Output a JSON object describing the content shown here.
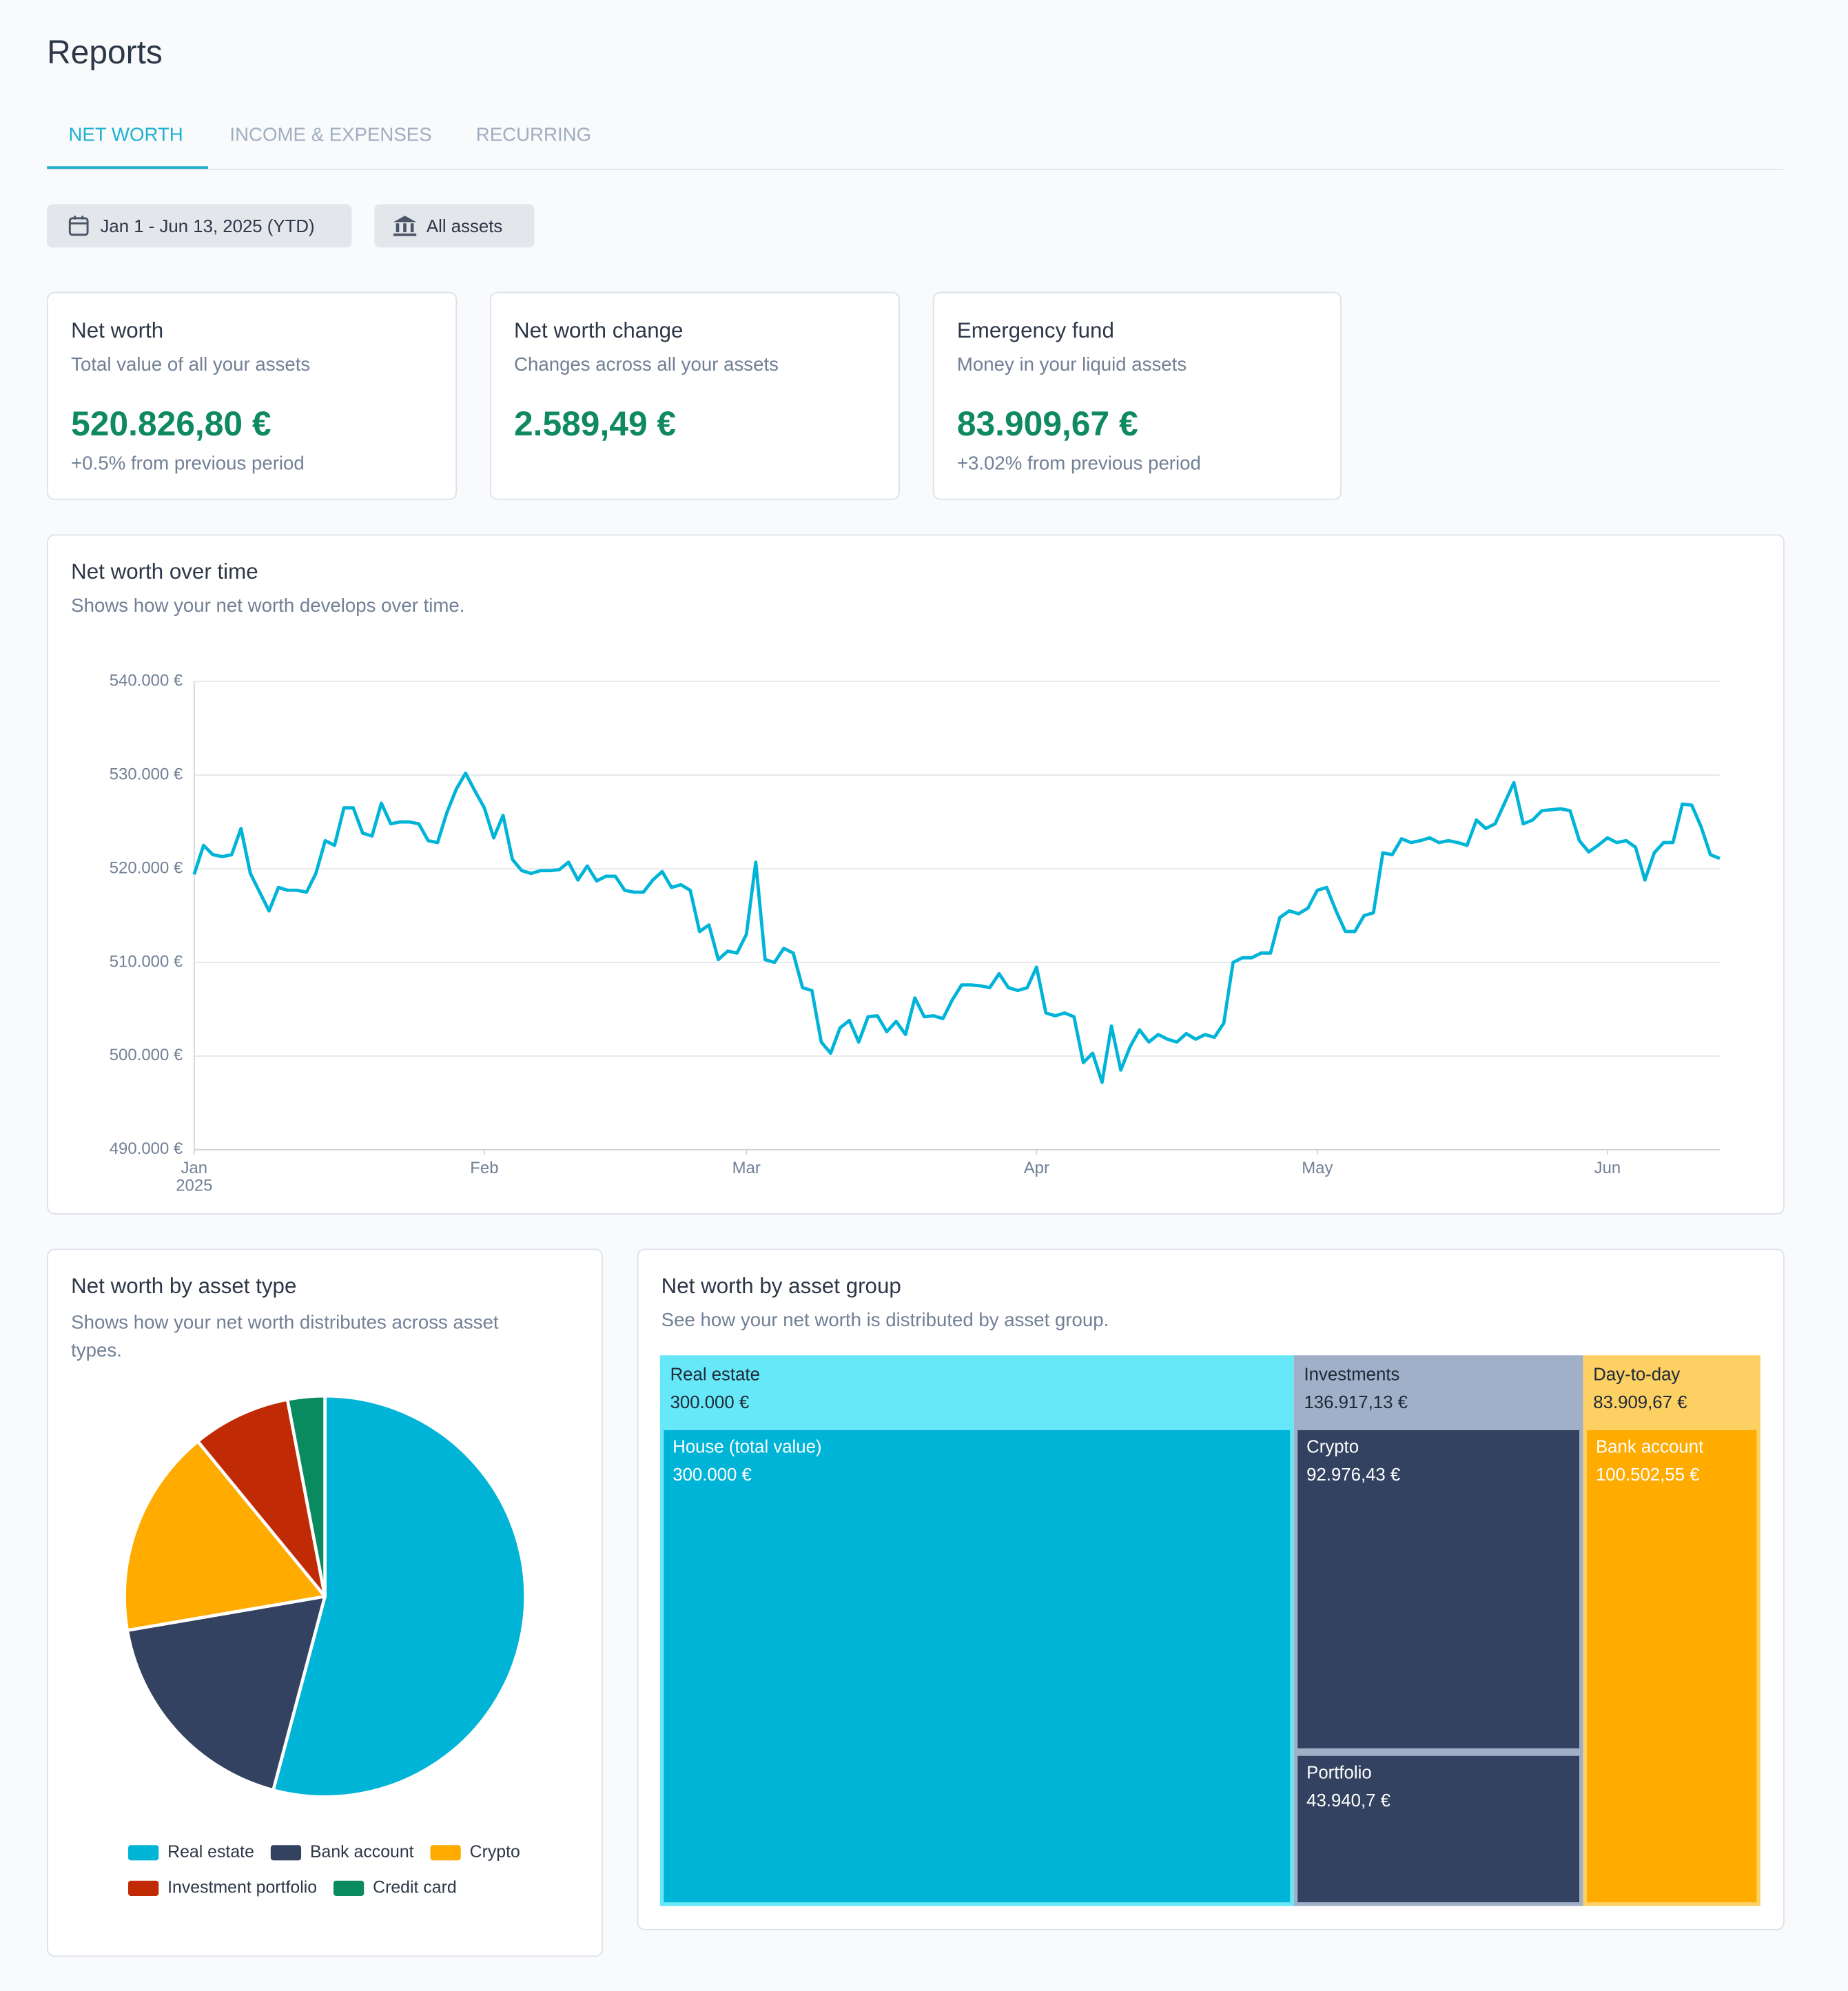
{
  "title": "Reports",
  "tabs": [
    "NET WORTH",
    "INCOME & EXPENSES",
    "RECURRING"
  ],
  "filters": [
    "Jan 1 - Jun 13, 2025 (YTD)",
    "All assets"
  ],
  "cards": [
    {
      "title": "Net worth",
      "subtitle": "Total value of all your assets",
      "value": "520.826,80 €",
      "change": "+0.5% from previous period"
    },
    {
      "title": "Net worth change",
      "subtitle": "Changes across all your assets",
      "value": "2.589,49 €"
    },
    {
      "title": "Emergency fund",
      "subtitle": "Money in your liquid assets",
      "value": "83.909,67 €",
      "change": "+3.02% from previous period"
    }
  ],
  "chart_data": [
    {
      "type": "line",
      "title": "Net worth over time",
      "subtitle": "Shows how your net worth develops over time.",
      "color": "#00b4d8",
      "values": [
        519400,
        522500,
        521500,
        521300,
        521500,
        524300,
        519500,
        517500,
        515500,
        518000,
        517700,
        517700,
        517500,
        519500,
        523000,
        522500,
        526500,
        526500,
        523800,
        523500,
        527000,
        524800,
        525000,
        525000,
        524800,
        523000,
        522800,
        526000,
        528500,
        530200,
        528300,
        526500,
        523300,
        525700,
        521000,
        519800,
        519500,
        519800,
        519800,
        519900,
        520700,
        518800,
        520300,
        518700,
        519200,
        519200,
        517700,
        517500,
        517500,
        518800,
        519700,
        518000,
        518300,
        517700,
        513300,
        514000,
        510300,
        511200,
        511000,
        513000,
        520700,
        510300,
        510000,
        511500,
        511000,
        507300,
        507000,
        501500,
        500300,
        503000,
        503800,
        501500,
        504200,
        504300,
        502600,
        503700,
        502300,
        506200,
        504200,
        504300,
        504000,
        506000,
        507600,
        507600,
        507500,
        507300,
        508800,
        507300,
        507000,
        507300,
        509500,
        504600,
        504300,
        504600,
        504200,
        499300,
        500300,
        497200,
        503200,
        498500,
        501000,
        502800,
        501500,
        502300,
        501800,
        501500,
        502400,
        501800,
        502300,
        502000,
        503500,
        510000,
        510500,
        510500,
        511000,
        511000,
        514800,
        515500,
        515200,
        515800,
        517700,
        518000,
        515500,
        513300,
        513300,
        515000,
        515300,
        521700,
        521500,
        523200,
        522800,
        523000,
        523300,
        522800,
        523000,
        522800,
        522500,
        525200,
        524300,
        524800,
        527000,
        529200,
        524800,
        525200,
        526200,
        526300,
        526400,
        526200,
        523000,
        521800,
        522500,
        523300,
        522800,
        523000,
        522300,
        518800,
        521700,
        522800,
        522800,
        526900,
        526800,
        524500,
        521500,
        521100
      ],
      "xlim": [
        0,
        163
      ],
      "xticks": [
        {
          "value": 0,
          "label": "Jan"
        },
        {
          "value": 31,
          "label": "Feb"
        },
        {
          "value": 59,
          "label": "Mar"
        },
        {
          "value": 90,
          "label": "Apr"
        },
        {
          "value": 120,
          "label": "May"
        },
        {
          "value": 151,
          "label": "Jun"
        }
      ],
      "x_year_label": "2025",
      "ylim": [
        490000,
        540000
      ],
      "yticks": [
        {
          "value": 490000,
          "label": "490.000 €"
        },
        {
          "value": 500000,
          "label": "500.000 €"
        },
        {
          "value": 510000,
          "label": "510.000 €"
        },
        {
          "value": 520000,
          "label": "520.000 €"
        },
        {
          "value": 530000,
          "label": "530.000 €"
        },
        {
          "value": 540000,
          "label": "540.000 €"
        }
      ],
      "grid": true
    },
    {
      "type": "pie",
      "title": "Net worth by asset type",
      "subtitle": "Shows how your net worth distributes across asset types.",
      "categories": [
        "Real estate",
        "Bank account",
        "Crypto",
        "Investment portfolio",
        "Credit card"
      ],
      "values": [
        300000,
        100502.55,
        92976.43,
        43940.7,
        16593
      ],
      "colors": [
        "#00b4d8",
        "#334260",
        "#ffab00",
        "#c02a05",
        "#0a8a5f"
      ],
      "legend": "bottom"
    },
    {
      "type": "treemap",
      "title": "Net worth by asset group",
      "subtitle": "See how your net worth is distributed by asset group.",
      "groups": [
        {
          "name": "Real estate",
          "value": 300000,
          "value_label": "300.000 €",
          "color": "#67e8f9",
          "children": [
            {
              "name": "House (total value)",
              "value": 300000,
              "value_label": "300.000 €",
              "color": "#00b4d8"
            }
          ]
        },
        {
          "name": "Investments",
          "value": 136917.13,
          "value_label": "136.917,13 €",
          "color": "#9fb0c8",
          "children": [
            {
              "name": "Crypto",
              "value": 92976.43,
              "value_label": "92.976,43 €",
              "color": "#334260"
            },
            {
              "name": "Portfolio",
              "value": 43940.7,
              "value_label": "43.940,7 €",
              "color": "#334260"
            }
          ]
        },
        {
          "name": "Day-to-day",
          "value": 83909.67,
          "value_label": "83.909,67 €",
          "color": "#fdd063",
          "children": [
            {
              "name": "Bank account",
              "value": 100502.55,
              "value_label": "100.502,55 €",
              "color": "#ffab00"
            }
          ]
        }
      ]
    }
  ]
}
